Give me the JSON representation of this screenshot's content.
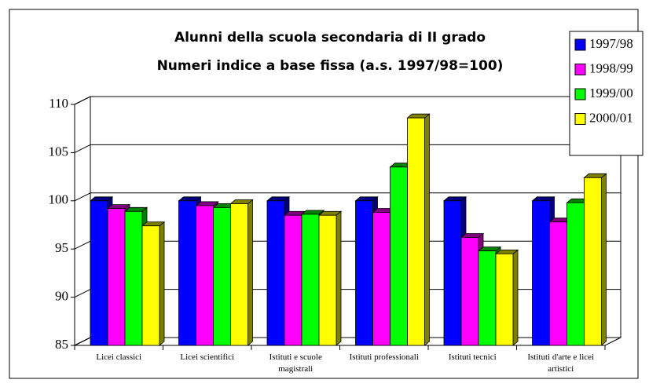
{
  "chart_data": {
    "type": "bar3d",
    "title": "Alunni della scuola secondaria di II grado",
    "subtitle": "Numeri indice a base fissa (a.s. 1997/98=100)",
    "categories": [
      "Licei classici",
      "Licei scientifici",
      "Istituti e scuole magistrali",
      "Istituti professionali",
      "Istituti tecnici",
      "Istituti d'arte e licei artistici"
    ],
    "series": [
      {
        "name": "1997/98",
        "color": "#0000ff",
        "side": "#000080",
        "values": [
          100,
          100,
          100,
          100,
          100,
          100
        ]
      },
      {
        "name": "1998/99",
        "color": "#ff00ff",
        "side": "#800080",
        "values": [
          99.2,
          99.5,
          98.5,
          98.8,
          96.2,
          97.8
        ]
      },
      {
        "name": "1999/00",
        "color": "#00ff00",
        "side": "#008000",
        "values": [
          98.9,
          99.3,
          98.6,
          103.5,
          94.8,
          99.8
        ]
      },
      {
        "name": "2000/01",
        "color": "#ffff00",
        "side": "#808000",
        "values": [
          97.4,
          99.7,
          98.5,
          108.6,
          94.5,
          102.4
        ]
      }
    ],
    "ylim": [
      85,
      110
    ],
    "yticks": [
      85,
      90,
      95,
      100,
      105,
      110
    ],
    "grid": true,
    "legend": "top-right"
  }
}
